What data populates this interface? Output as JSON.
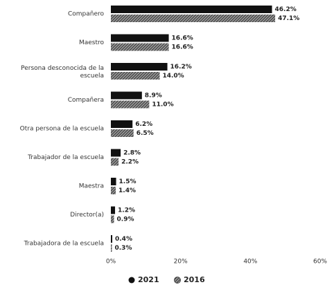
{
  "chart_data": {
    "type": "bar",
    "orientation": "horizontal",
    "categories": [
      "Compañero",
      "Maestro",
      "Persona desconocida de la escuela",
      "Compañera",
      "Otra persona de la escuela",
      "Trabajador de la escuela",
      "Maestra",
      "Director(a)",
      "Trabajadora de la escuela"
    ],
    "series": [
      {
        "name": "2021",
        "color": "#111111",
        "values": [
          46.2,
          16.6,
          16.2,
          8.9,
          6.2,
          2.8,
          1.5,
          1.2,
          0.4
        ],
        "value_labels": [
          "46.2%",
          "16.6%",
          "16.2%",
          "8.9%",
          "6.2%",
          "2.8%",
          "1.5%",
          "1.2%",
          "0.4%"
        ]
      },
      {
        "name": "2016",
        "color": "#777777",
        "values": [
          47.1,
          16.6,
          14.0,
          11.0,
          6.5,
          2.2,
          1.4,
          0.9,
          0.3
        ],
        "value_labels": [
          "47.1%",
          "16.6%",
          "14.0%",
          "11.0%",
          "6.5%",
          "2.2%",
          "1.4%",
          "0.9%",
          "0.3%"
        ]
      }
    ],
    "xlim": [
      0,
      60
    ],
    "xticks": [
      {
        "value": 0,
        "label": "0%"
      },
      {
        "value": 20,
        "label": "20%"
      },
      {
        "value": 40,
        "label": "40%"
      },
      {
        "value": 60,
        "label": "60%"
      }
    ],
    "legend": "bottom"
  }
}
